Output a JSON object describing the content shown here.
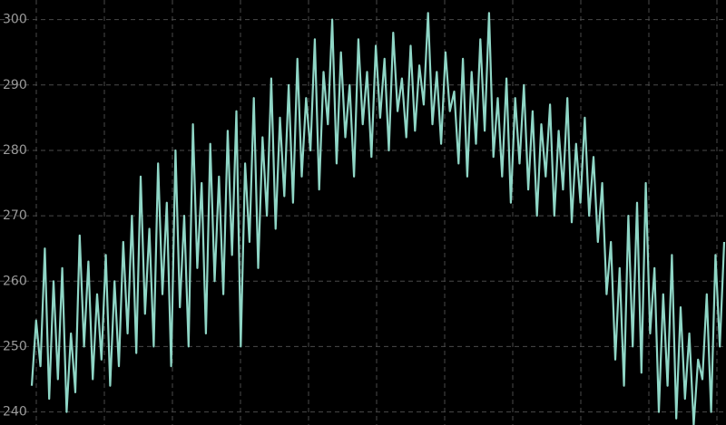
{
  "chart_data": {
    "type": "line",
    "color": "#8fd6c6",
    "ylim": [
      238,
      303
    ],
    "yticks": [
      240,
      250,
      260,
      270,
      280,
      290,
      300
    ],
    "grid": true,
    "values": [
      244,
      254,
      247,
      265,
      242,
      260,
      245,
      262,
      240,
      252,
      243,
      267,
      250,
      263,
      245,
      258,
      248,
      264,
      244,
      260,
      247,
      266,
      252,
      270,
      249,
      276,
      255,
      268,
      250,
      278,
      258,
      272,
      247,
      280,
      256,
      270,
      250,
      284,
      262,
      275,
      252,
      281,
      260,
      276,
      258,
      283,
      264,
      286,
      250,
      278,
      266,
      288,
      262,
      282,
      270,
      291,
      268,
      285,
      273,
      290,
      272,
      294,
      276,
      288,
      280,
      297,
      274,
      292,
      284,
      300,
      278,
      295,
      282,
      290,
      276,
      297,
      284,
      292,
      279,
      296,
      285,
      294,
      280,
      298,
      286,
      291,
      282,
      296,
      283,
      293,
      287,
      301,
      284,
      292,
      281,
      295,
      286,
      289,
      278,
      294,
      276,
      292,
      281,
      297,
      283,
      301,
      279,
      288,
      276,
      291,
      272,
      288,
      278,
      290,
      274,
      286,
      270,
      284,
      276,
      287,
      270,
      283,
      274,
      288,
      269,
      281,
      272,
      285,
      270,
      279,
      266,
      275,
      258,
      266,
      248,
      262,
      244,
      270,
      250,
      272,
      246,
      275,
      252,
      262,
      240,
      258,
      244,
      264,
      239,
      256,
      242,
      252,
      238,
      248,
      245,
      258,
      240,
      264,
      250,
      266
    ]
  }
}
